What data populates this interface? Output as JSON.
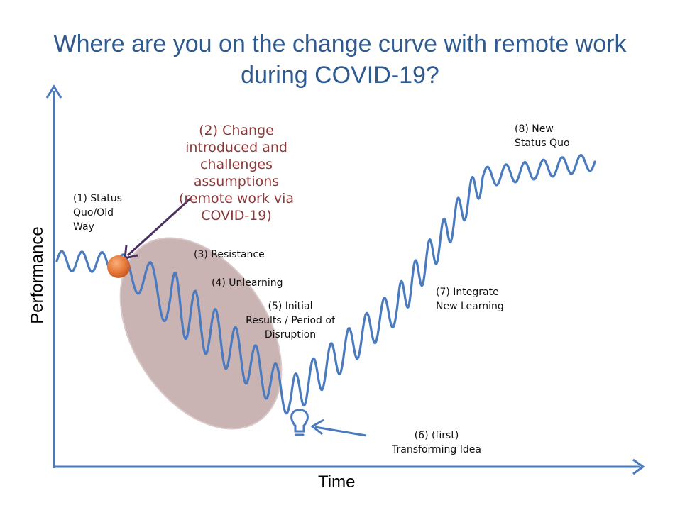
{
  "title": {
    "line1": "Where are you on the change curve with remote work",
    "line2": "during COVID-19?"
  },
  "axes": {
    "y_label": "Performance",
    "x_label": "Time"
  },
  "stages": {
    "s1": [
      "(1) Status",
      "Quo/Old",
      "Way"
    ],
    "s2": [
      "(2) Change",
      "introduced and",
      "challenges",
      "assumptions",
      "(remote work via",
      "COVID-19)"
    ],
    "s3": "(3) Resistance",
    "s4": "(4) Unlearning",
    "s5": [
      "(5) Initial",
      "Results / Period of",
      "Disruption"
    ],
    "s6": [
      "(6) (first)",
      "Transforming Idea"
    ],
    "s7": [
      "(7) Integrate",
      "New Learning"
    ],
    "s8": [
      "(8) New",
      "Status Quo"
    ]
  },
  "colors": {
    "title": "#2e5a8f",
    "curve": "#4a7bbf",
    "axis": "#4a7bbf",
    "highlight_text": "#8c3a3a",
    "ellipse": "#b89a9a",
    "dot": "#e8793a",
    "pointer": "#4a3060"
  },
  "icons": {
    "marker": "orange-dot-icon",
    "idea": "lightbulb-icon"
  }
}
